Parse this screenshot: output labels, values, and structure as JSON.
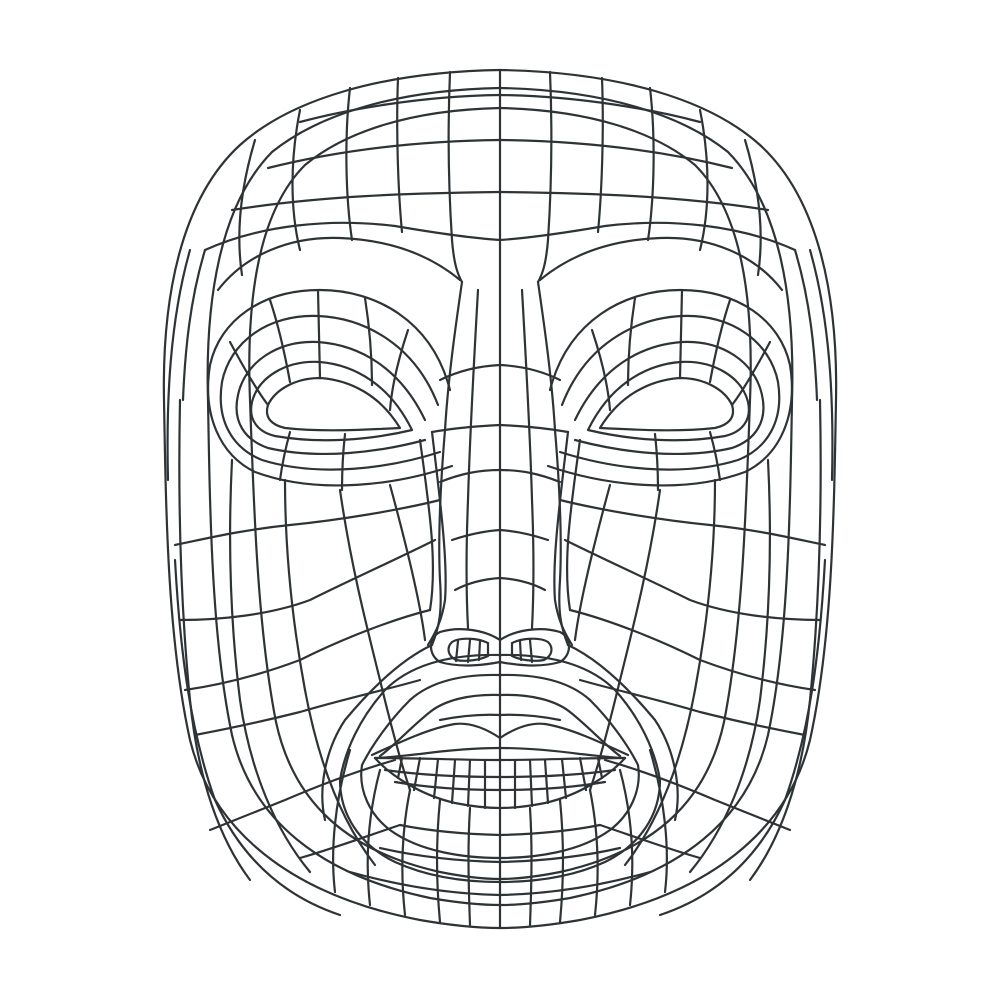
{
  "figure": {
    "subject": "face-wireframe-mesh",
    "background_color": "#ffffff",
    "line_color": "#2e3336",
    "features": [
      {
        "name": "face-outline"
      },
      {
        "name": "forehead"
      },
      {
        "name": "left-eye"
      },
      {
        "name": "right-eye"
      },
      {
        "name": "nose"
      },
      {
        "name": "left-nostril"
      },
      {
        "name": "right-nostril"
      },
      {
        "name": "upper-lip"
      },
      {
        "name": "lower-lip"
      },
      {
        "name": "chin"
      }
    ]
  }
}
